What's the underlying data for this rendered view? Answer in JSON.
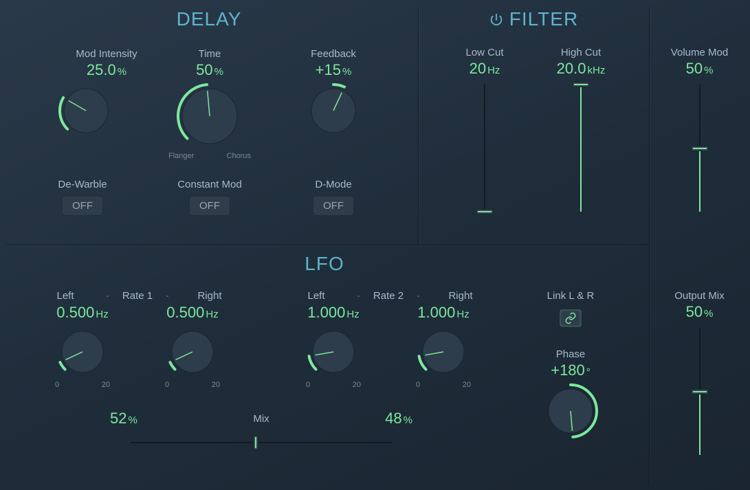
{
  "colors": {
    "accent": "#7de89c",
    "title": "#5fb4cc",
    "text": "#a8bac8",
    "muted": "#7a8a96",
    "knob_fill": "#2e3d4c",
    "background_start": "#2a3949",
    "background_end": "#1a2530",
    "pill_bg": "#2f3d4b"
  },
  "delay": {
    "title": "DELAY",
    "mod_intensity": {
      "label": "Mod Intensity",
      "value": "25.0",
      "unit": "%",
      "knob": {
        "size": 80,
        "start_deg": 225,
        "sweep_deg": -75,
        "needle_deg": 150
      }
    },
    "time": {
      "label": "Time",
      "value": "50",
      "unit": "%",
      "knob": {
        "size": 96,
        "start_deg": 225,
        "sweep_deg": -130,
        "needle_deg": 95
      },
      "left_label": "Flanger",
      "right_label": "Chorus"
    },
    "feedback": {
      "label": "Feedback",
      "value": "+15",
      "unit": "%",
      "knob": {
        "size": 80,
        "start_deg": 90,
        "sweep_deg": -25,
        "needle_deg": 65
      }
    },
    "dewarble": {
      "label": "De-Warble",
      "state": "OFF"
    },
    "constant_mod": {
      "label": "Constant Mod",
      "state": "OFF"
    },
    "dmode": {
      "label": "D-Mode",
      "state": "OFF"
    }
  },
  "filter": {
    "title": "FILTER",
    "low_cut": {
      "label": "Low Cut",
      "value": "20",
      "unit": "Hz",
      "slider_pct": 0
    },
    "high_cut": {
      "label": "High Cut",
      "value": "20.0",
      "unit": "kHz",
      "slider_pct": 100
    }
  },
  "volume_mod": {
    "label": "Volume Mod",
    "value": "50",
    "unit": "%",
    "slider_pct": 50
  },
  "lfo": {
    "title": "LFO",
    "rate1": {
      "group_label": "Rate 1",
      "left_label": "Left",
      "right_label": "Right",
      "left": {
        "value": "0.500",
        "unit": "Hz",
        "knob": {
          "size": 76,
          "start_deg": 225,
          "sweep_deg": -20,
          "needle_deg": 205
        },
        "min": "0",
        "max": "20"
      },
      "right": {
        "value": "0.500",
        "unit": "Hz",
        "knob": {
          "size": 76,
          "start_deg": 225,
          "sweep_deg": -20,
          "needle_deg": 205
        },
        "min": "0",
        "max": "20"
      }
    },
    "rate2": {
      "group_label": "Rate 2",
      "left_label": "Left",
      "right_label": "Right",
      "left": {
        "value": "1.000",
        "unit": "Hz",
        "knob": {
          "size": 76,
          "start_deg": 225,
          "sweep_deg": -35,
          "needle_deg": 190
        },
        "min": "0",
        "max": "20"
      },
      "right": {
        "value": "1.000",
        "unit": "Hz",
        "knob": {
          "size": 76,
          "start_deg": 225,
          "sweep_deg": -35,
          "needle_deg": 190
        },
        "min": "0",
        "max": "20"
      }
    },
    "link": {
      "label": "Link L & R",
      "on": true
    },
    "phase": {
      "label": "Phase",
      "value": "+180",
      "unit": "°",
      "knob": {
        "size": 80,
        "start_deg": 90,
        "sweep_deg": -175,
        "needle_deg": 275
      }
    },
    "mix": {
      "label": "Mix",
      "left_value": "52",
      "left_unit": "%",
      "right_value": "48",
      "right_unit": "%",
      "slider_pct": 48
    }
  },
  "output_mix": {
    "label": "Output Mix",
    "value": "50",
    "unit": "%",
    "slider_pct": 50
  }
}
